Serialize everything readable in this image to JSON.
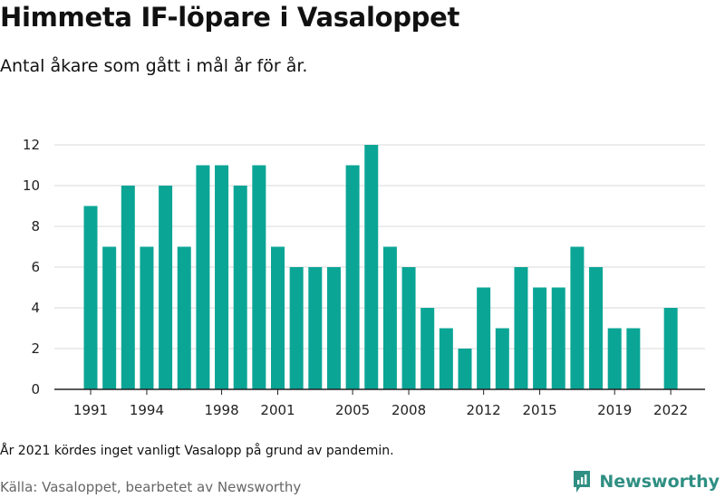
{
  "header": {
    "title": "Himmeta IF-löpare i Vasaloppet",
    "subtitle": "Antal åkare som gått i mål år för år."
  },
  "footer": {
    "note": "År 2021 kördes inget vanligt Vasalopp på grund av pandemin.",
    "source": "Källa: Vasaloppet, bearbetet av Newsworthy",
    "brand": "Newsworthy",
    "brand_icon": "newsworthy-logo-icon"
  },
  "colors": {
    "bar": "#0ba596",
    "grid": "#d9d9d9",
    "axis": "#222222",
    "brand": "#2f8f83"
  },
  "chart_data": {
    "type": "bar",
    "title": "Himmeta IF-löpare i Vasaloppet",
    "subtitle": "Antal åkare som gått i mål år för år.",
    "xlabel": "",
    "ylabel": "",
    "ylim": [
      0,
      12
    ],
    "y_ticks": [
      0,
      2,
      4,
      6,
      8,
      10,
      12
    ],
    "grid": true,
    "categories": [
      1991,
      1992,
      1993,
      1994,
      1995,
      1996,
      1997,
      1998,
      1999,
      2000,
      2001,
      2002,
      2003,
      2004,
      2005,
      2006,
      2007,
      2008,
      2009,
      2010,
      2011,
      2012,
      2013,
      2014,
      2015,
      2016,
      2017,
      2018,
      2019,
      2020,
      2021,
      2022
    ],
    "values": [
      9,
      7,
      10,
      7,
      10,
      7,
      11,
      11,
      10,
      11,
      7,
      6,
      6,
      6,
      11,
      12,
      7,
      6,
      4,
      3,
      2,
      5,
      3,
      6,
      5,
      5,
      7,
      6,
      3,
      3,
      null,
      4
    ],
    "x_tick_labels": [
      1991,
      1994,
      1998,
      2001,
      2005,
      2008,
      2012,
      2015,
      2019,
      2022
    ]
  }
}
